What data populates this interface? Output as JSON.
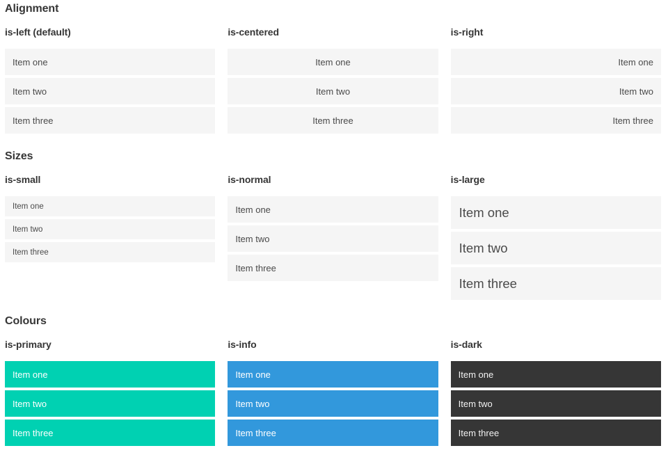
{
  "colors": {
    "primary": "#00d1b2",
    "info": "#3298dc",
    "dark": "#363636",
    "item_bg": "#f5f5f5",
    "item_text": "#4a4a4a",
    "heading_text": "#363636"
  },
  "sections": [
    {
      "title": "Alignment",
      "groups": [
        {
          "label": "is-left (default)",
          "modifier": "is-left",
          "items": [
            "Item one",
            "Item two",
            "Item three"
          ]
        },
        {
          "label": "is-centered",
          "modifier": "is-centered",
          "items": [
            "Item one",
            "Item two",
            "Item three"
          ]
        },
        {
          "label": "is-right",
          "modifier": "is-right",
          "items": [
            "Item one",
            "Item two",
            "Item three"
          ]
        }
      ]
    },
    {
      "title": "Sizes",
      "groups": [
        {
          "label": "is-small",
          "modifier": "is-small",
          "items": [
            "Item one",
            "Item two",
            "Item three"
          ]
        },
        {
          "label": "is-normal",
          "modifier": "is-normal",
          "items": [
            "Item one",
            "Item two",
            "Item three"
          ]
        },
        {
          "label": "is-large",
          "modifier": "is-large",
          "items": [
            "Item one",
            "Item two",
            "Item three"
          ]
        }
      ]
    },
    {
      "title": "Colours",
      "groups": [
        {
          "label": "is-primary",
          "modifier": "is-primary",
          "items": [
            "Item one",
            "Item two",
            "Item three"
          ]
        },
        {
          "label": "is-info",
          "modifier": "is-info",
          "items": [
            "Item one",
            "Item two",
            "Item three"
          ]
        },
        {
          "label": "is-dark",
          "modifier": "is-dark",
          "items": [
            "Item one",
            "Item two",
            "Item three"
          ]
        }
      ]
    }
  ]
}
